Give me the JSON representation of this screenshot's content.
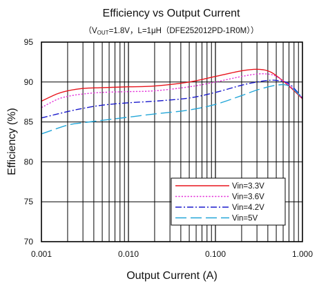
{
  "chart_data": {
    "type": "line",
    "title": "Efficiency vs Output Current",
    "subtitle": {
      "open": "（V",
      "sub": "OUT",
      "rest": "=1.8V，L=1μH（DFE252012PD-1R0M））"
    },
    "xlabel": "Output Current (A)",
    "ylabel": "Efficiency (%)",
    "x_scale": "log",
    "xlim": [
      0.001,
      1.0
    ],
    "ylim": [
      70,
      95
    ],
    "x_ticks": [
      0.001,
      0.01,
      0.1,
      1.0
    ],
    "x_tick_labels": [
      "0.001",
      "0.010",
      "0.100",
      "1.000"
    ],
    "y_ticks": [
      70,
      75,
      80,
      85,
      90,
      95
    ],
    "y_tick_labels": [
      "70",
      "75",
      "80",
      "85",
      "90",
      "95"
    ],
    "grid": true,
    "legend_position": "bottom-right",
    "series": [
      {
        "name": "Vin=3.3V",
        "color": "#e8141c",
        "dash": "solid",
        "x": [
          0.001,
          0.0015,
          0.002,
          0.003,
          0.005,
          0.01,
          0.02,
          0.05,
          0.1,
          0.2,
          0.3,
          0.4,
          0.5,
          0.7,
          1.0
        ],
        "y": [
          87.6,
          88.5,
          88.9,
          89.2,
          89.3,
          89.4,
          89.5,
          90.0,
          90.7,
          91.4,
          91.6,
          91.4,
          90.8,
          89.5,
          87.9
        ]
      },
      {
        "name": "Vin=3.6V",
        "color": "#e32fd8",
        "dash": "dot",
        "x": [
          0.001,
          0.0015,
          0.002,
          0.003,
          0.005,
          0.01,
          0.02,
          0.05,
          0.1,
          0.2,
          0.3,
          0.4,
          0.5,
          0.7,
          1.0
        ],
        "y": [
          86.8,
          87.8,
          88.2,
          88.5,
          88.7,
          88.8,
          88.9,
          89.4,
          90.0,
          90.7,
          91.0,
          91.0,
          90.7,
          89.6,
          88.0
        ]
      },
      {
        "name": "Vin=4.2V",
        "color": "#1818cc",
        "dash": "dashdot",
        "x": [
          0.001,
          0.002,
          0.003,
          0.005,
          0.01,
          0.02,
          0.05,
          0.1,
          0.2,
          0.3,
          0.4,
          0.5,
          0.7,
          1.0
        ],
        "y": [
          85.5,
          86.3,
          86.7,
          87.1,
          87.4,
          87.6,
          88.0,
          88.7,
          89.6,
          90.0,
          90.2,
          90.2,
          89.8,
          88.0
        ]
      },
      {
        "name": "Vin=5V",
        "color": "#22a6d8",
        "dash": "longdash",
        "x": [
          0.001,
          0.002,
          0.003,
          0.005,
          0.01,
          0.02,
          0.05,
          0.1,
          0.2,
          0.3,
          0.5,
          0.7,
          1.0
        ],
        "y": [
          83.5,
          84.6,
          84.9,
          85.2,
          85.6,
          86.0,
          86.5,
          87.2,
          88.3,
          89.0,
          89.6,
          89.5,
          88.0
        ]
      }
    ]
  }
}
